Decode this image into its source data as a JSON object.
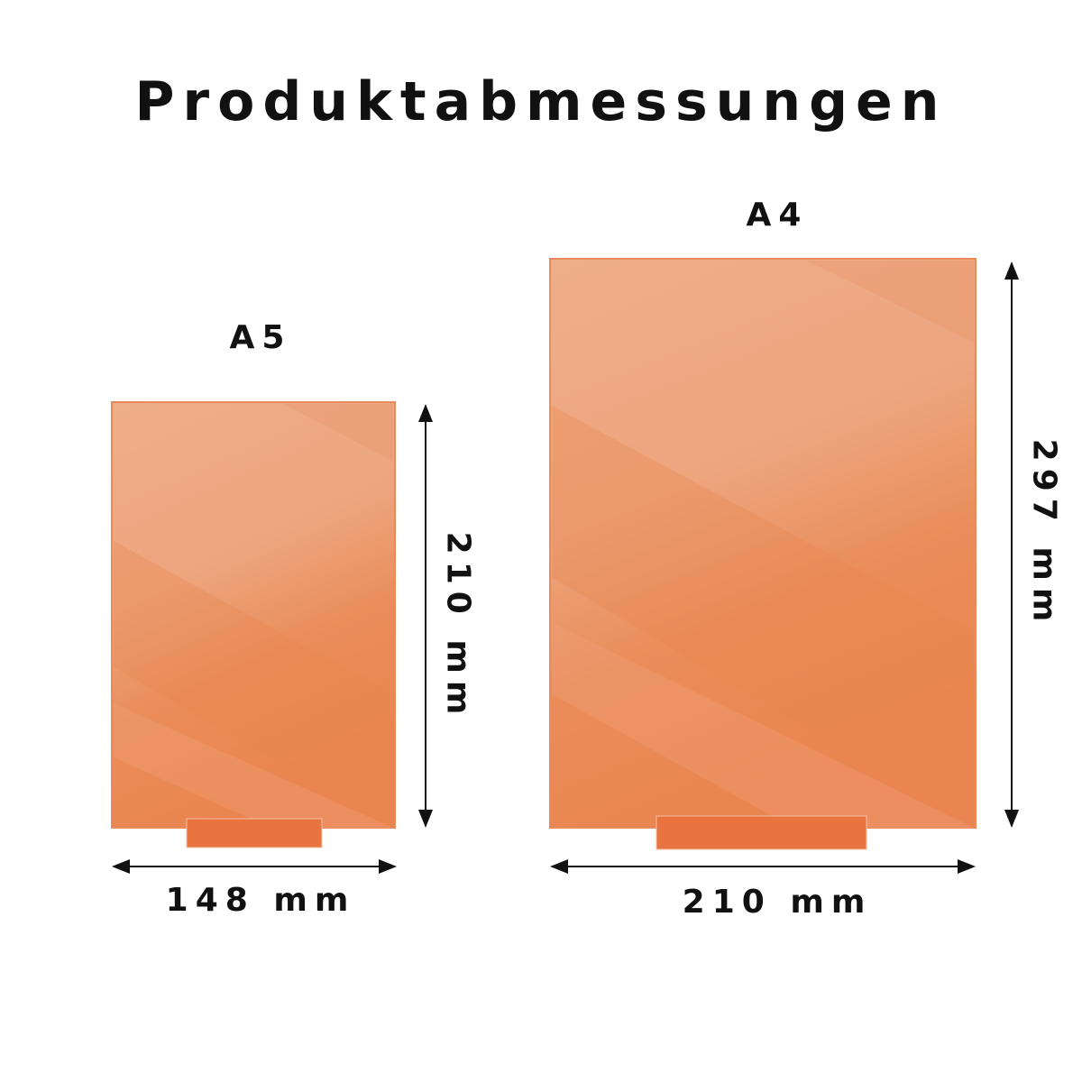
{
  "title": "Produktabmessungen",
  "colors": {
    "panel_light": "#eeae8a",
    "panel_dark": "#ea8550",
    "stand": "#e9743f",
    "text": "#111111"
  },
  "products": [
    {
      "name": "A5",
      "width_label": "148 mm",
      "height_label": "210 mm"
    },
    {
      "name": "A4",
      "width_label": "210 mm",
      "height_label": "297 mm"
    }
  ]
}
